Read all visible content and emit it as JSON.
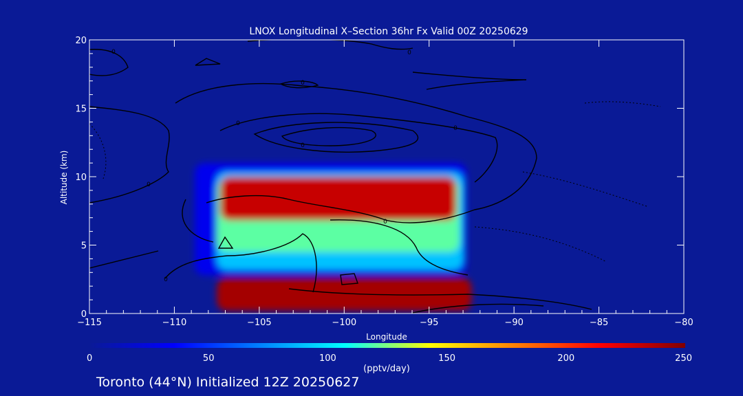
{
  "chart_data": {
    "type": "heatmap",
    "title": "LNOX Longitudinal X–Section 36hr  Fx Valid 00Z 20250629",
    "xlabel": "Longitude",
    "ylabel": "Altitude (km)",
    "xlim": [
      -115,
      -80
    ],
    "ylim": [
      0,
      20
    ],
    "x_ticks": [
      -115,
      -110,
      -105,
      -100,
      -95,
      -90,
      -85,
      -80
    ],
    "x_tick_labels": [
      "−115",
      "−110",
      "−105",
      "−100",
      "−95",
      "−90",
      "−85",
      "−80"
    ],
    "y_ticks": [
      0,
      5,
      10,
      15,
      20
    ],
    "y_tick_labels": [
      "0",
      "5",
      "10",
      "15",
      "20"
    ],
    "colorbar": {
      "min": 0,
      "max": 250,
      "ticks": [
        0,
        50,
        100,
        150,
        200,
        250
      ],
      "tick_labels": [
        "0",
        "50",
        "100",
        "150",
        "200",
        "250"
      ],
      "label": "(pptv/day)",
      "colors": [
        "#0a1a96",
        "#0000ff",
        "#0080ff",
        "#00ffff",
        "#ffff00",
        "#ff8000",
        "#ff0000",
        "#800000"
      ]
    },
    "regions": [
      {
        "value": 30,
        "lon": [
          -108.8,
          -92.8
        ],
        "alt": [
          2.8,
          11.0
        ]
      },
      {
        "value": 90,
        "lon": [
          -107.5,
          -93.0
        ],
        "alt": [
          3.2,
          10.3
        ]
      },
      {
        "value": 120,
        "lon": [
          -107.5,
          -93.2
        ],
        "alt": [
          4.5,
          9.8
        ]
      },
      {
        "value": 230,
        "lon": [
          -107.3,
          -93.4
        ],
        "alt": [
          6.8,
          10.0
        ]
      },
      {
        "value": 240,
        "lon": [
          -107.5,
          -92.5
        ],
        "alt": [
          0.2,
          2.6
        ]
      }
    ],
    "contour_labels": [
      "0"
    ],
    "annotation": "Toronto (44°N) Initialized 12Z 20250627"
  }
}
